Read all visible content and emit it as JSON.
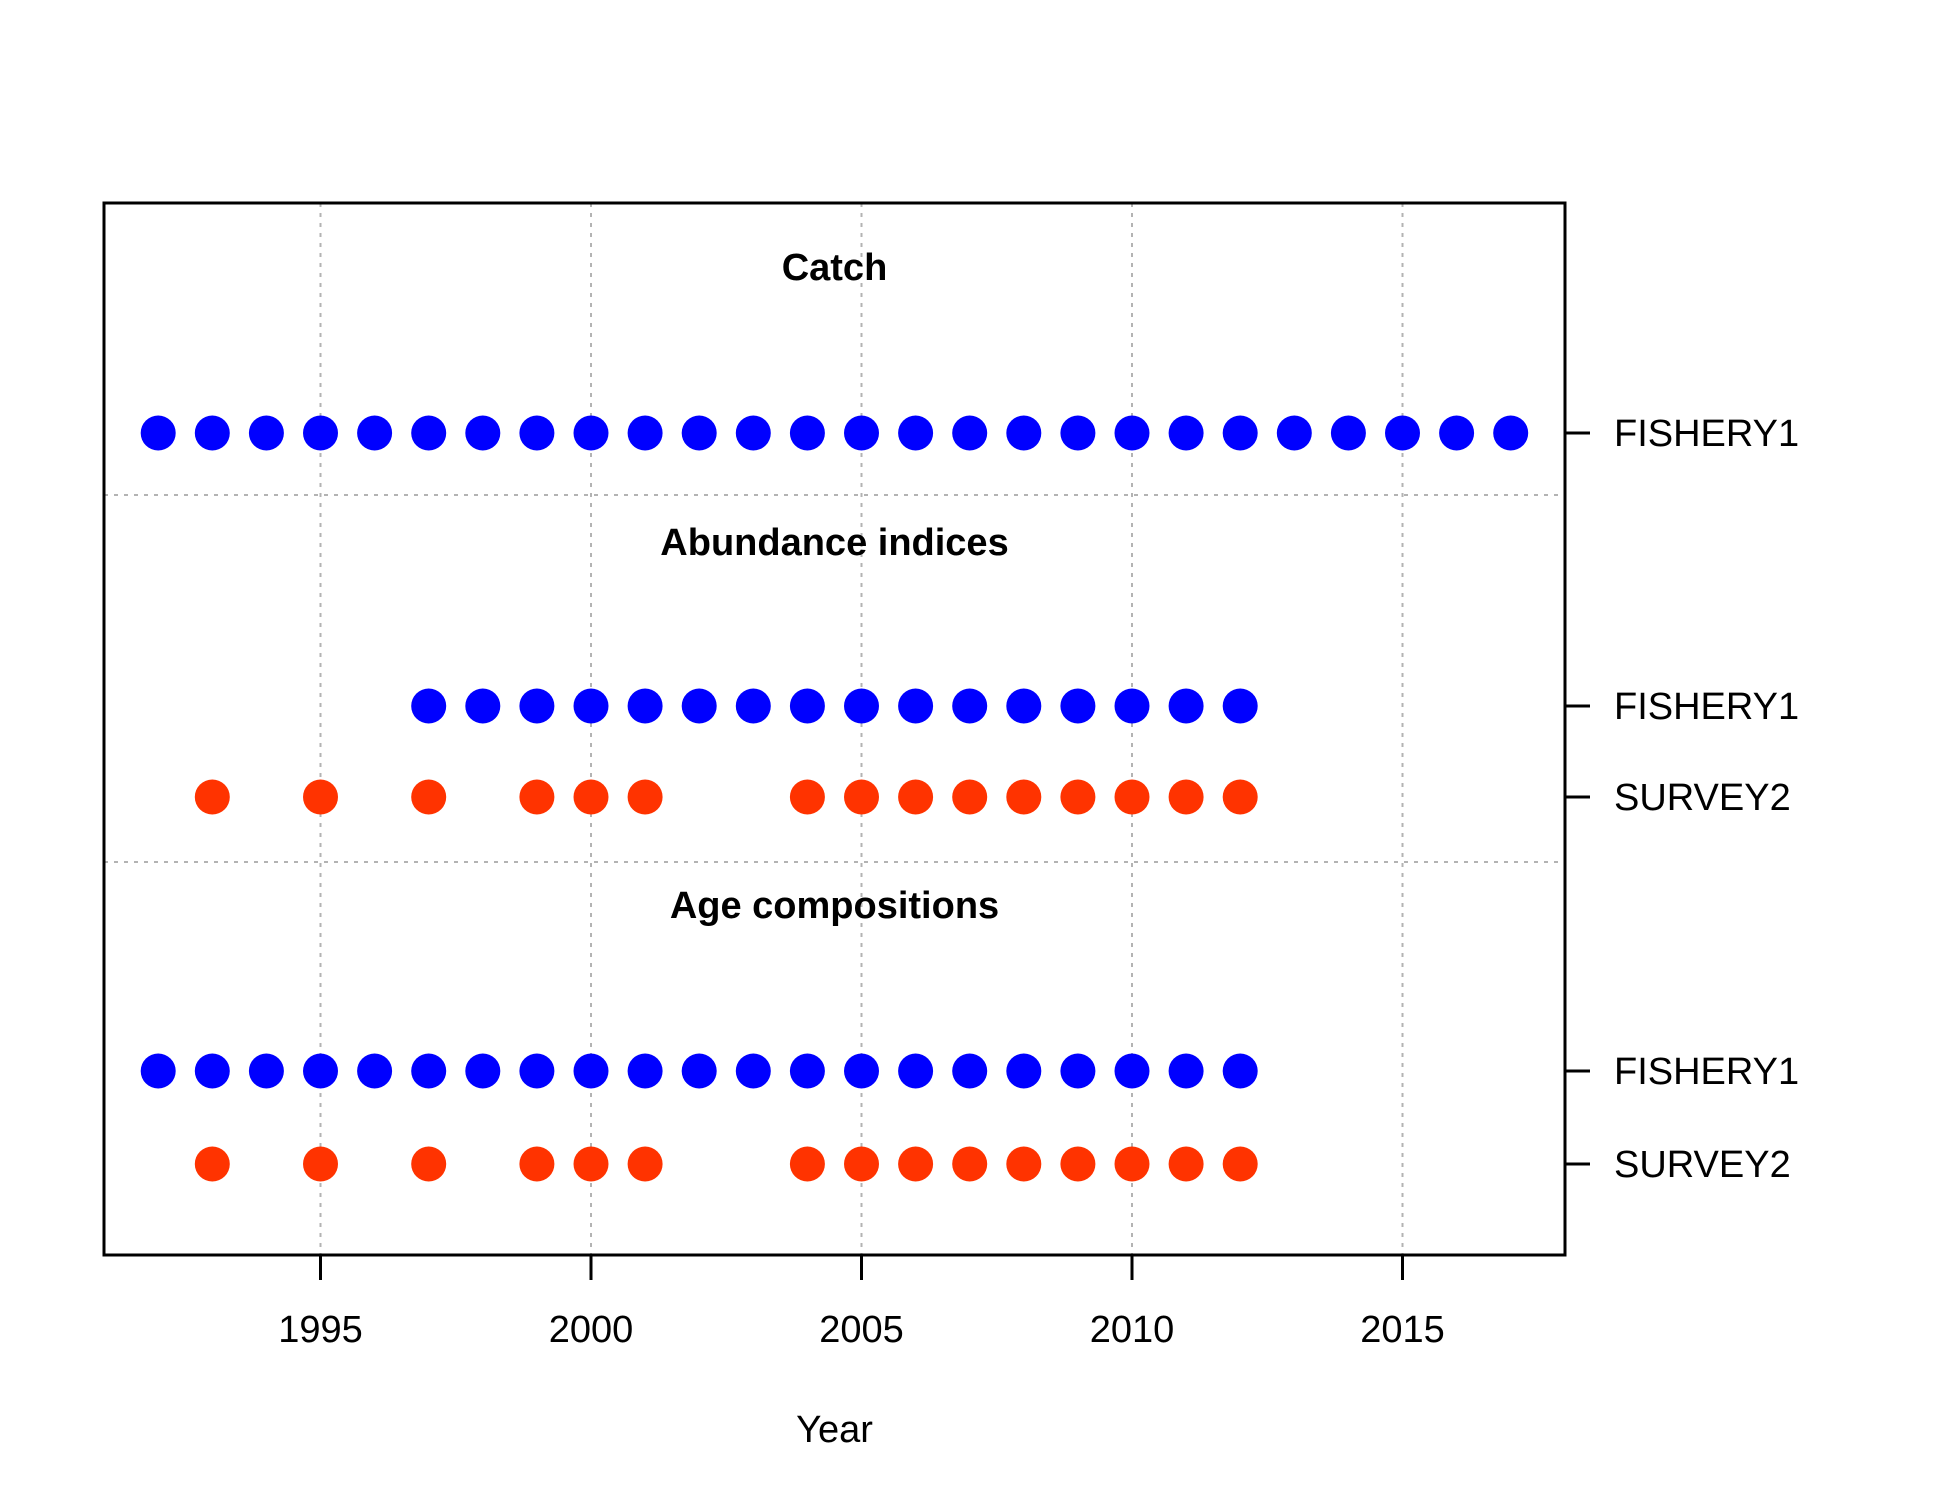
{
  "chart_data": {
    "type": "scatter",
    "title": "",
    "xlabel": "Year",
    "ylabel": "",
    "xlim": [
      1991.5,
      2018.5
    ],
    "x_ticks": [
      1995,
      2000,
      2005,
      2010,
      2015
    ],
    "grid": true,
    "legend": "none",
    "sections": [
      {
        "title": "Catch",
        "series": [
          {
            "name": "FISHERY1",
            "color": "#0000FF",
            "years": [
              1992,
              1993,
              1994,
              1995,
              1996,
              1997,
              1998,
              1999,
              2000,
              2001,
              2002,
              2003,
              2004,
              2005,
              2006,
              2007,
              2008,
              2009,
              2010,
              2011,
              2012,
              2013,
              2014,
              2015,
              2016,
              2017
            ]
          }
        ]
      },
      {
        "title": "Abundance indices",
        "series": [
          {
            "name": "FISHERY1",
            "color": "#0000FF",
            "years": [
              1997,
              1998,
              1999,
              2000,
              2001,
              2002,
              2003,
              2004,
              2005,
              2006,
              2007,
              2008,
              2009,
              2010,
              2011,
              2012
            ]
          },
          {
            "name": "SURVEY2",
            "color": "#FF3300",
            "years": [
              1993,
              1995,
              1997,
              1999,
              2000,
              2001,
              2004,
              2005,
              2006,
              2007,
              2008,
              2009,
              2010,
              2011,
              2012
            ]
          }
        ]
      },
      {
        "title": "Age compositions",
        "series": [
          {
            "name": "FISHERY1",
            "color": "#0000FF",
            "years": [
              1992,
              1993,
              1994,
              1995,
              1996,
              1997,
              1998,
              1999,
              2000,
              2001,
              2002,
              2003,
              2004,
              2005,
              2006,
              2007,
              2008,
              2009,
              2010,
              2011,
              2012
            ]
          },
          {
            "name": "SURVEY2",
            "color": "#FF3300",
            "years": [
              1993,
              1995,
              1997,
              1999,
              2000,
              2001,
              2004,
              2005,
              2006,
              2007,
              2008,
              2009,
              2010,
              2011,
              2012
            ]
          }
        ]
      }
    ]
  }
}
